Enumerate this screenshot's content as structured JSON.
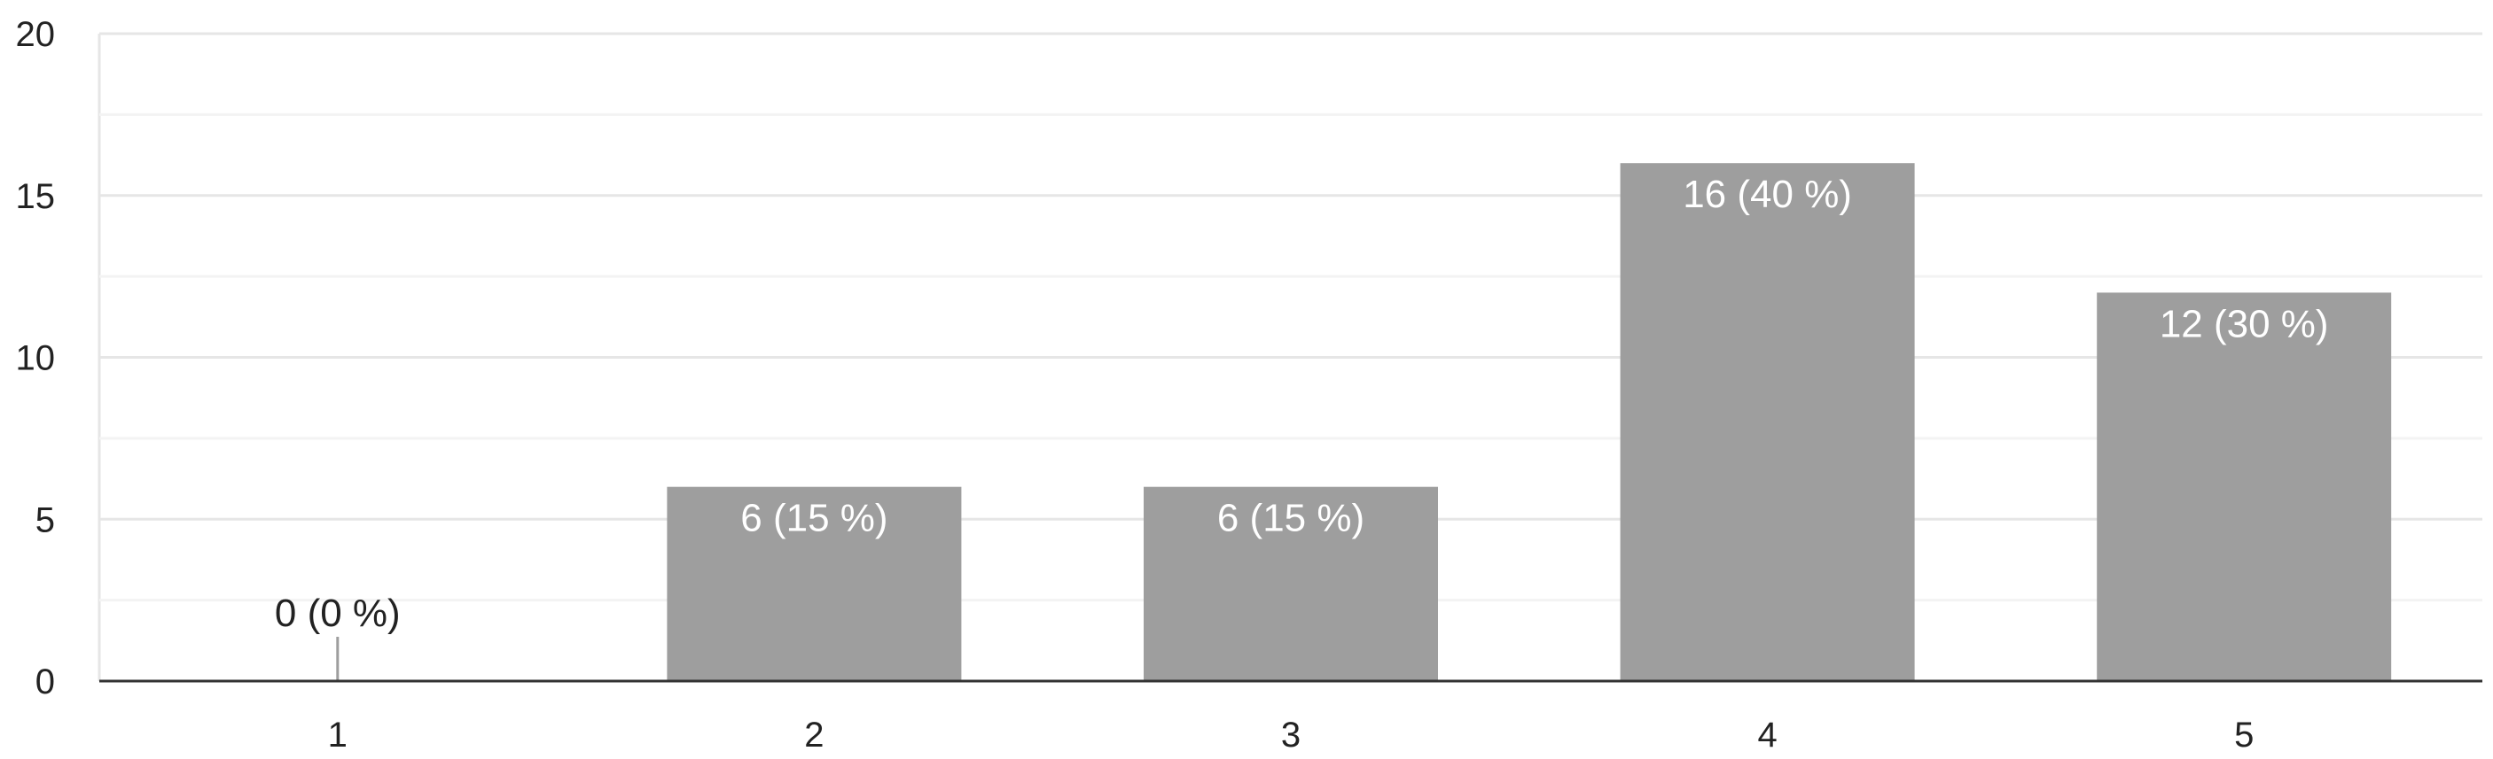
{
  "chart_data": {
    "type": "bar",
    "categories": [
      "1",
      "2",
      "3",
      "4",
      "5"
    ],
    "values": [
      0,
      6,
      6,
      16,
      12
    ],
    "data_labels": [
      "0 (0 %)",
      "6 (15 %)",
      "6 (15 %)",
      "16 (40 %)",
      "12 (30 %)"
    ],
    "y_ticks": [
      "0",
      "5",
      "10",
      "15",
      "20"
    ],
    "ylim": [
      0,
      20
    ],
    "title": "",
    "xlabel": "",
    "ylabel": "",
    "grid": true,
    "legend": "none",
    "colors": {
      "bar": "#9e9e9e",
      "label_inside": "#ffffff",
      "label_outside": "#222222",
      "grid_major": "#e6e6e6",
      "grid_minor": "#f3f3f3",
      "axis": "#333333",
      "frame": "#e6e6e6"
    }
  }
}
